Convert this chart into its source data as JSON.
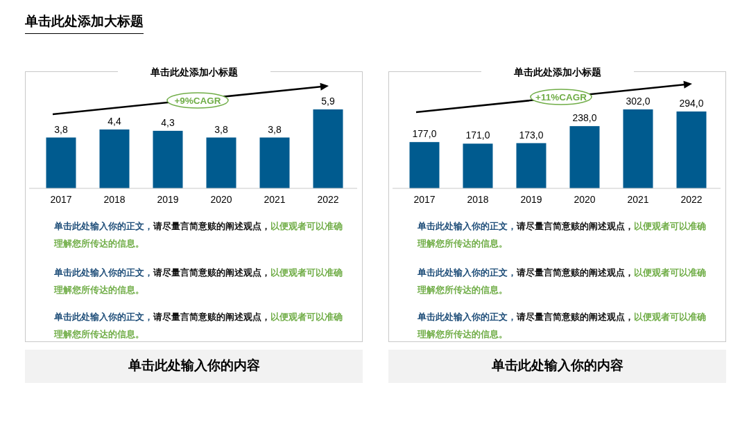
{
  "chart_data": [
    {
      "type": "bar",
      "title": "单击此处添加大标题",
      "subtitle": "单击此处添加小标题",
      "categories": [
        "2017",
        "2018",
        "2019",
        "2020",
        "2021",
        "2022"
      ],
      "values": [
        3.8,
        4.4,
        4.3,
        3.8,
        3.8,
        5.9
      ],
      "value_labels": [
        "3,8",
        "4,4",
        "4,3",
        "3,8",
        "3,8",
        "5,9"
      ],
      "color": "#005b8f",
      "annotations": [
        "+9%CAGR",
        "单击此处输入你的正文，",
        "请尽量言简意赅的阐述观点，",
        "以便观者可以准确理解您所传达的信息。",
        "单击此处输入你的正文，",
        "请尽量言简意赅的阐述观点，",
        "以便观者可以准确理解您所传达的信息。",
        "单击此处输入你的正文，",
        "请尽量言简意赅的阐述观点，",
        "以便观者可以准确理解您所传达的信息。",
        "单击此处输入你的内容"
      ]
    },
    {
      "type": "bar",
      "subtitle": "单击此处添加小标题",
      "categories": [
        "2017",
        "2018",
        "2019",
        "2020",
        "2021",
        "2022"
      ],
      "values": [
        177.0,
        171.0,
        173.0,
        238.0,
        302.0,
        294.0
      ],
      "value_labels": [
        "177,0",
        "171,0",
        "173,0",
        "238,0",
        "302,0",
        "294,0"
      ],
      "color": "#005b8f",
      "annotations": [
        "+11%CAGR",
        "单击此处输入你的正文，",
        "请尽量言简意赅的阐述观点，",
        "以便观者可以准确理解您所传达的信息。",
        "单击此处输入你的正文，",
        "请尽量言简意赅的阐述观点，",
        "以便观者可以准确理解您所传达的信息。",
        "单击此处输入你的正文，",
        "请尽量言简意赅的阐述观点，",
        "以便观者可以准确理解您所传达的信息。",
        "单击此处输入你的内容"
      ]
    }
  ]
}
